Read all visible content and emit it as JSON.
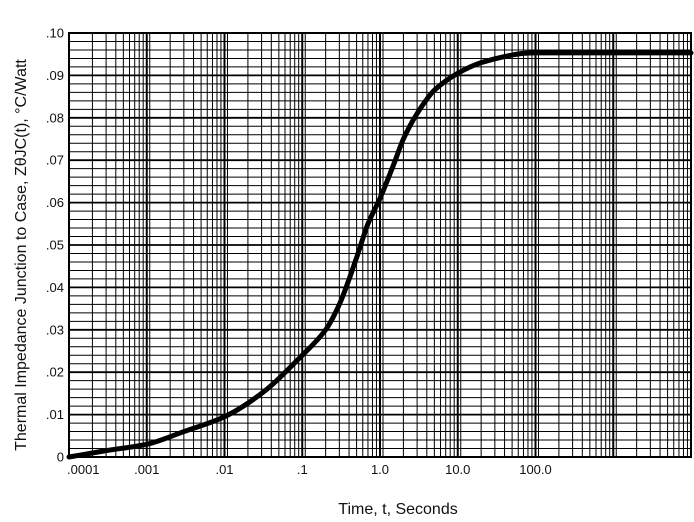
{
  "chart_data": {
    "type": "line",
    "xlabel": "Time, t, Seconds",
    "ylabel": "Thermal Impedance Junction to Case, ZθJC(t), °C/Watt",
    "x_scale": "log",
    "xlim": [
      0.0001,
      10000
    ],
    "ylim": [
      0,
      0.1
    ],
    "grid": true,
    "y_ticks": [
      {
        "value": 0,
        "label": "0"
      },
      {
        "value": 0.01,
        "label": ".01"
      },
      {
        "value": 0.02,
        "label": ".02"
      },
      {
        "value": 0.03,
        "label": ".03"
      },
      {
        "value": 0.04,
        "label": ".04"
      },
      {
        "value": 0.05,
        "label": ".05"
      },
      {
        "value": 0.06,
        "label": ".06"
      },
      {
        "value": 0.07,
        "label": ".07"
      },
      {
        "value": 0.08,
        "label": ".08"
      },
      {
        "value": 0.09,
        "label": ".09"
      },
      {
        "value": 0.1,
        "label": ".10"
      }
    ],
    "x_ticks": [
      {
        "value": 0.0001,
        "label": ".0001"
      },
      {
        "value": 0.001,
        "label": ".001"
      },
      {
        "value": 0.01,
        "label": ".01"
      },
      {
        "value": 0.1,
        "label": ".1"
      },
      {
        "value": 1,
        "label": "1.0"
      },
      {
        "value": 10,
        "label": "10.0"
      },
      {
        "value": 100,
        "label": "100.0"
      }
    ],
    "series": [
      {
        "x": [
          0.0001,
          0.0003,
          0.001,
          0.003,
          0.01,
          0.03,
          0.1,
          0.2,
          0.3,
          0.5,
          0.7,
          1,
          1.5,
          2,
          3,
          5,
          10,
          20,
          50,
          70,
          100,
          1000,
          10000
        ],
        "y": [
          0.0,
          0.0015,
          0.003,
          0.006,
          0.0095,
          0.015,
          0.024,
          0.03,
          0.036,
          0.047,
          0.055,
          0.061,
          0.069,
          0.075,
          0.081,
          0.0865,
          0.0905,
          0.093,
          0.0948,
          0.0952,
          0.0953,
          0.0953,
          0.0953
        ]
      }
    ]
  }
}
